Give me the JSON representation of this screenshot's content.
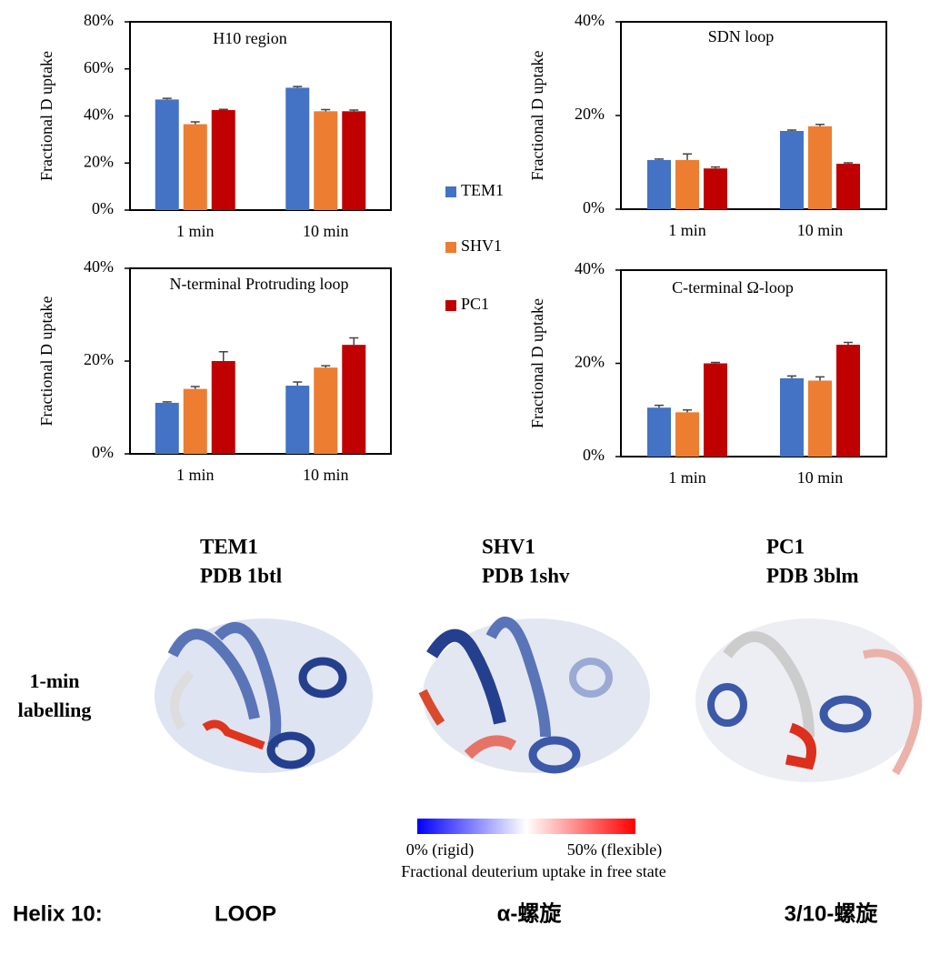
{
  "chart_data": [
    {
      "type": "bar",
      "title": "H10 region",
      "ylabel": "Fractional D uptake",
      "categories": [
        "1 min",
        "10 min"
      ],
      "series": [
        {
          "name": "TEM1",
          "color": "#4472c4",
          "values": [
            47,
            52
          ],
          "errors": [
            0.5,
            0.5
          ]
        },
        {
          "name": "SHV1",
          "color": "#ed7d31",
          "values": [
            36.5,
            42
          ],
          "errors": [
            1,
            0.7
          ]
        },
        {
          "name": "PC1",
          "color": "#c00000",
          "values": [
            42.5,
            42
          ],
          "errors": [
            0.3,
            0.5
          ]
        }
      ],
      "ylim": [
        0,
        80
      ],
      "yticks": [
        {
          "value": 0,
          "label": "0%"
        },
        {
          "value": 20,
          "label": "20%"
        },
        {
          "value": 40,
          "label": "40%"
        },
        {
          "value": 60,
          "label": "60%"
        },
        {
          "value": 80,
          "label": "80%"
        }
      ]
    },
    {
      "type": "bar",
      "title": "SDN loop",
      "ylabel": "Fractional D uptake",
      "categories": [
        "1 min",
        "10 min"
      ],
      "series": [
        {
          "color": "#4472c4",
          "values": [
            10.5,
            16.7
          ],
          "errors": [
            0.2,
            0.2
          ]
        },
        {
          "color": "#ed7d31",
          "values": [
            10.5,
            17.7
          ],
          "errors": [
            1.3,
            0.4
          ]
        },
        {
          "color": "#c00000",
          "values": [
            8.7,
            9.7
          ],
          "errors": [
            0.3,
            0.2
          ]
        }
      ],
      "ylim": [
        0,
        40
      ],
      "yticks": [
        {
          "value": 0,
          "label": "0%"
        },
        {
          "value": 20,
          "label": "20%"
        },
        {
          "value": 40,
          "label": "40%"
        }
      ]
    },
    {
      "type": "bar",
      "title": "N-terminal Protruding loop",
      "ylabel": "Fractional D uptake",
      "categories": [
        "1 min",
        "10 min"
      ],
      "series": [
        {
          "color": "#4472c4",
          "values": [
            11,
            14.7
          ],
          "errors": [
            0.2,
            0.8
          ]
        },
        {
          "color": "#ed7d31",
          "values": [
            14,
            18.6
          ],
          "errors": [
            0.5,
            0.4
          ]
        },
        {
          "color": "#c00000",
          "values": [
            20,
            23.5
          ],
          "errors": [
            2,
            1.5
          ]
        }
      ],
      "ylim": [
        0,
        40
      ],
      "yticks": [
        {
          "value": 0,
          "label": "0%"
        },
        {
          "value": 20,
          "label": "20%"
        },
        {
          "value": 40,
          "label": "40%"
        }
      ]
    },
    {
      "type": "bar",
      "title": "C-terminal Ω-loop",
      "ylabel": "Fractional D uptake",
      "categories": [
        "1 min",
        "10 min"
      ],
      "series": [
        {
          "color": "#4472c4",
          "values": [
            10.5,
            16.8
          ],
          "errors": [
            0.5,
            0.5
          ]
        },
        {
          "color": "#ed7d31",
          "values": [
            9.5,
            16.3
          ],
          "errors": [
            0.5,
            0.8
          ]
        },
        {
          "color": "#c00000",
          "values": [
            20,
            24
          ],
          "errors": [
            0.2,
            0.5
          ]
        }
      ],
      "ylim": [
        0,
        40
      ],
      "yticks": [
        {
          "value": 0,
          "label": "0%"
        },
        {
          "value": 20,
          "label": "20%"
        },
        {
          "value": 40,
          "label": "40%"
        }
      ]
    }
  ],
  "structures": [
    {
      "name": "TEM1",
      "pdb": "PDB 1btl",
      "color": "#4472c4"
    },
    {
      "name": "SHV1",
      "pdb": "PDB 1shv",
      "color": "#ed7d31"
    },
    {
      "name": "PC1",
      "pdb": "PDB 3blm",
      "color": "#c00000"
    }
  ],
  "row_label": [
    "1-min",
    "labelling"
  ],
  "colorbar": {
    "min_label": "0% (rigid)",
    "max_label": "50% (flexible)",
    "caption": "Fractional deuterium uptake in free state"
  },
  "footer": {
    "label": "Helix 10:",
    "items": [
      "LOOP",
      "α-螺旋",
      "3/10-螺旋"
    ]
  }
}
